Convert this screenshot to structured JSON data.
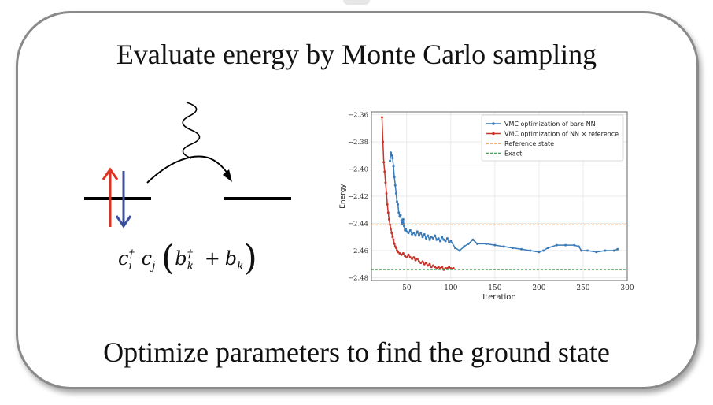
{
  "heading": "Evaluate energy by Monte Carlo sampling",
  "footer": "Optimize parameters to find the ground state",
  "formula": {
    "c_i": "c",
    "i": "i",
    "dagger": "†",
    "c_j": "c",
    "j": "j",
    "b_k": "b",
    "k": "k",
    "plus": "+"
  },
  "colors": {
    "spin_up": "#e0301e",
    "spin_down": "#3b4f9e",
    "bare_nn": "#3a7ab8",
    "nn_ref": "#c8352a",
    "reference": "#f2994a",
    "exact": "#41a84a"
  },
  "chart_data": {
    "type": "line",
    "xlabel": "Iteration",
    "ylabel": "Energy",
    "xlim": [
      10,
      300
    ],
    "ylim": [
      -2.482,
      -2.358
    ],
    "xticks": [
      50,
      100,
      150,
      200,
      250,
      300
    ],
    "yticks": [
      -2.36,
      -2.38,
      -2.4,
      -2.42,
      -2.44,
      -2.46,
      -2.48
    ],
    "ytick_labels": [
      "−2.36",
      "−2.38",
      "−2.40",
      "−2.42",
      "−2.44",
      "−2.46",
      "−2.48"
    ],
    "grid": true,
    "legend_position": "top-right",
    "series": [
      {
        "name": "VMC optimization of bare NN",
        "color": "#3a7ab8",
        "marker": true,
        "points": [
          [
            31,
            -2.394
          ],
          [
            32,
            -2.388
          ],
          [
            33,
            -2.39
          ],
          [
            34,
            -2.392
          ],
          [
            35,
            -2.398
          ],
          [
            36,
            -2.406
          ],
          [
            37,
            -2.412
          ],
          [
            38,
            -2.418
          ],
          [
            39,
            -2.424
          ],
          [
            40,
            -2.426
          ],
          [
            41,
            -2.432
          ],
          [
            42,
            -2.435
          ],
          [
            43,
            -2.434
          ],
          [
            44,
            -2.438
          ],
          [
            45,
            -2.44
          ],
          [
            46,
            -2.437
          ],
          [
            47,
            -2.442
          ],
          [
            48,
            -2.445
          ],
          [
            49,
            -2.444
          ],
          [
            50,
            -2.446
          ],
          [
            52,
            -2.447
          ],
          [
            54,
            -2.445
          ],
          [
            56,
            -2.448
          ],
          [
            58,
            -2.447
          ],
          [
            60,
            -2.449
          ],
          [
            62,
            -2.446
          ],
          [
            64,
            -2.449
          ],
          [
            66,
            -2.447
          ],
          [
            68,
            -2.45
          ],
          [
            70,
            -2.448
          ],
          [
            72,
            -2.451
          ],
          [
            74,
            -2.449
          ],
          [
            76,
            -2.452
          ],
          [
            78,
            -2.45
          ],
          [
            80,
            -2.451
          ],
          [
            82,
            -2.449
          ],
          [
            84,
            -2.452
          ],
          [
            86,
            -2.451
          ],
          [
            88,
            -2.453
          ],
          [
            90,
            -2.45
          ],
          [
            92,
            -2.452
          ],
          [
            94,
            -2.453
          ],
          [
            96,
            -2.451
          ],
          [
            98,
            -2.454
          ],
          [
            100,
            -2.453
          ],
          [
            105,
            -2.458
          ],
          [
            110,
            -2.46
          ],
          [
            115,
            -2.457
          ],
          [
            120,
            -2.455
          ],
          [
            125,
            -2.452
          ],
          [
            130,
            -2.455
          ],
          [
            140,
            -2.455
          ],
          [
            150,
            -2.456
          ],
          [
            160,
            -2.457
          ],
          [
            170,
            -2.458
          ],
          [
            180,
            -2.459
          ],
          [
            190,
            -2.46
          ],
          [
            200,
            -2.461
          ],
          [
            205,
            -2.46
          ],
          [
            210,
            -2.458
          ],
          [
            220,
            -2.456
          ],
          [
            230,
            -2.456
          ],
          [
            240,
            -2.456
          ],
          [
            245,
            -2.457
          ],
          [
            248,
            -2.46
          ],
          [
            255,
            -2.46
          ],
          [
            265,
            -2.461
          ],
          [
            275,
            -2.46
          ],
          [
            285,
            -2.46
          ],
          [
            289,
            -2.459
          ]
        ]
      },
      {
        "name": "VMC optimization of NN × reference",
        "color": "#c8352a",
        "marker": true,
        "points": [
          [
            22,
            -2.362
          ],
          [
            23,
            -2.38
          ],
          [
            24,
            -2.395
          ],
          [
            25,
            -2.402
          ],
          [
            26,
            -2.41
          ],
          [
            27,
            -2.418
          ],
          [
            28,
            -2.426
          ],
          [
            29,
            -2.432
          ],
          [
            30,
            -2.437
          ],
          [
            31,
            -2.441
          ],
          [
            32,
            -2.444
          ],
          [
            33,
            -2.447
          ],
          [
            34,
            -2.45
          ],
          [
            35,
            -2.452
          ],
          [
            36,
            -2.455
          ],
          [
            37,
            -2.457
          ],
          [
            38,
            -2.458
          ],
          [
            39,
            -2.46
          ],
          [
            40,
            -2.461
          ],
          [
            42,
            -2.462
          ],
          [
            44,
            -2.463
          ],
          [
            46,
            -2.462
          ],
          [
            48,
            -2.464
          ],
          [
            50,
            -2.465
          ],
          [
            52,
            -2.463
          ],
          [
            54,
            -2.465
          ],
          [
            56,
            -2.466
          ],
          [
            58,
            -2.465
          ],
          [
            60,
            -2.467
          ],
          [
            62,
            -2.466
          ],
          [
            64,
            -2.468
          ],
          [
            66,
            -2.469
          ],
          [
            68,
            -2.468
          ],
          [
            70,
            -2.47
          ],
          [
            72,
            -2.469
          ],
          [
            74,
            -2.471
          ],
          [
            76,
            -2.47
          ],
          [
            78,
            -2.472
          ],
          [
            80,
            -2.471
          ],
          [
            82,
            -2.472
          ],
          [
            84,
            -2.473
          ],
          [
            86,
            -2.472
          ],
          [
            88,
            -2.473
          ],
          [
            90,
            -2.472
          ],
          [
            92,
            -2.474
          ],
          [
            94,
            -2.473
          ],
          [
            96,
            -2.473
          ],
          [
            98,
            -2.472
          ],
          [
            100,
            -2.473
          ],
          [
            103,
            -2.473
          ]
        ]
      },
      {
        "name": "Reference state",
        "color": "#f2994a",
        "dashed": true,
        "y": -2.441
      },
      {
        "name": "Exact",
        "color": "#41a84a",
        "dashed": true,
        "y": -2.474
      }
    ]
  }
}
